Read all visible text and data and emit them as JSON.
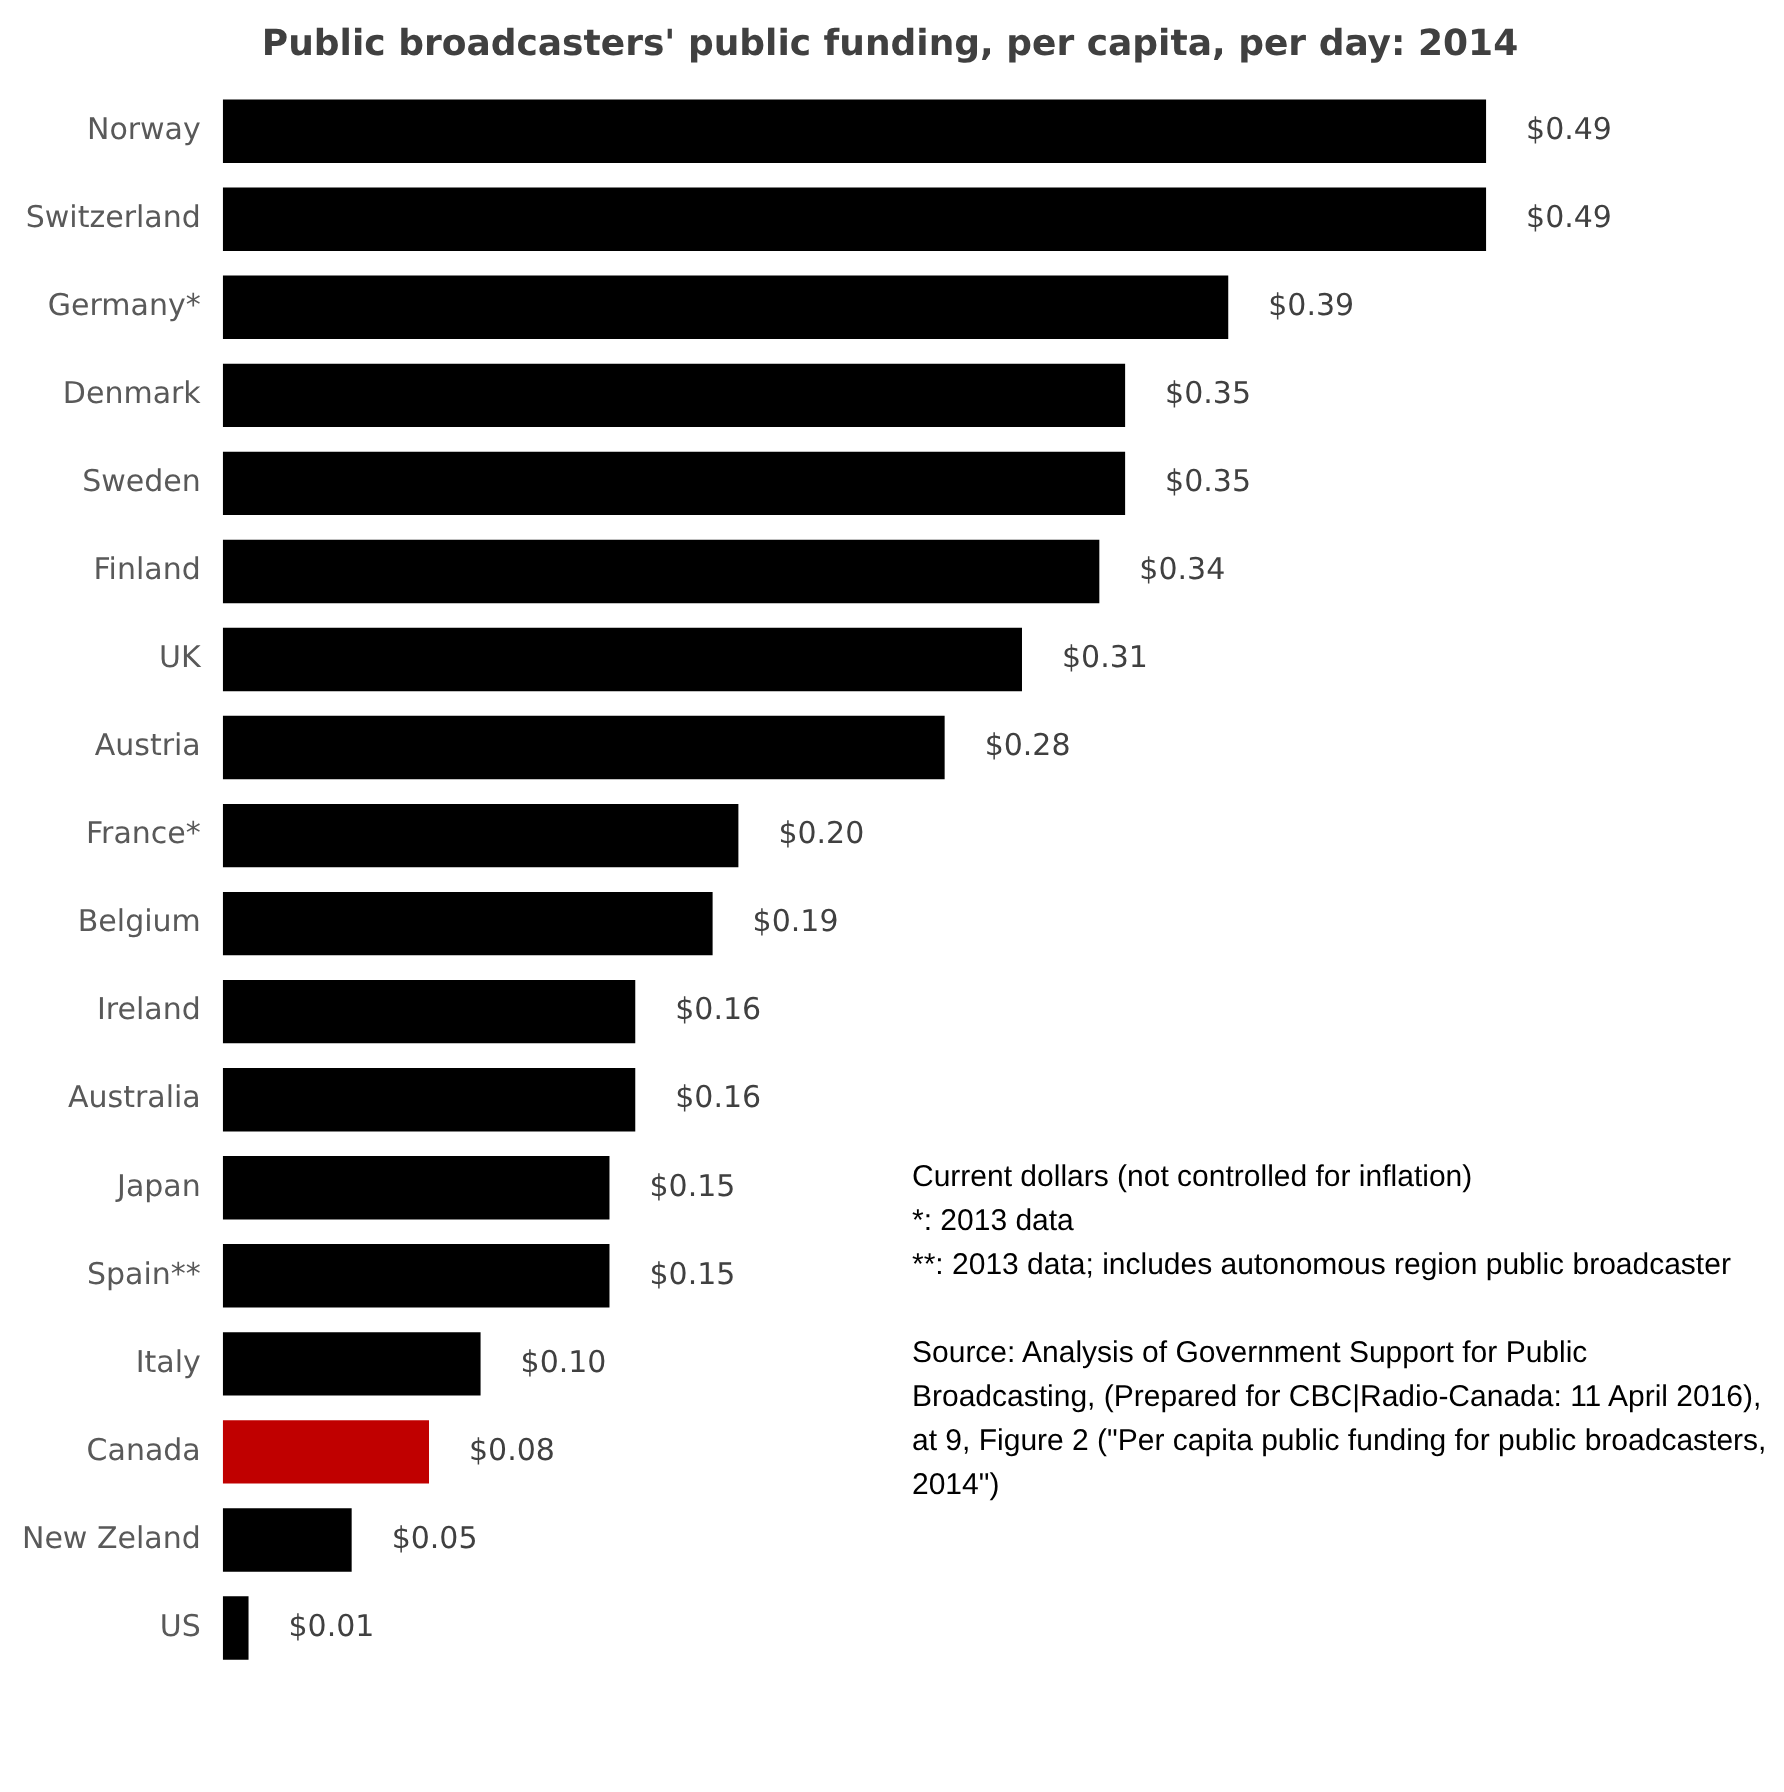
{
  "chart_data": {
    "type": "bar",
    "orientation": "horizontal",
    "title": "Public broadcasters' public funding, per capita, per day: 2014",
    "categories": [
      "Norway",
      "Switzerland",
      "Germany*",
      "Denmark",
      "Sweden",
      "Finland",
      "UK",
      "Austria",
      "France*",
      "Belgium",
      "Ireland",
      "Australia",
      "Japan",
      "Spain**",
      "Italy",
      "Canada",
      "New Zeland",
      "US"
    ],
    "values": [
      0.49,
      0.49,
      0.39,
      0.35,
      0.35,
      0.34,
      0.31,
      0.28,
      0.2,
      0.19,
      0.16,
      0.16,
      0.15,
      0.15,
      0.1,
      0.08,
      0.05,
      0.01
    ],
    "value_labels": [
      "$0.49",
      "$0.49",
      "$0.39",
      "$0.35",
      "$0.35",
      "$0.34",
      "$0.31",
      "$0.28",
      "$0.20",
      "$0.19",
      "$0.16",
      "$0.16",
      "$0.15",
      "$0.15",
      "$0.10",
      "$0.08",
      "$0.05",
      "$0.01"
    ],
    "colors": [
      "#000000",
      "#000000",
      "#000000",
      "#000000",
      "#000000",
      "#000000",
      "#000000",
      "#000000",
      "#000000",
      "#000000",
      "#000000",
      "#000000",
      "#000000",
      "#000000",
      "#000000",
      "#c00000",
      "#000000",
      "#000000"
    ],
    "legend": false,
    "tick_labels": "y",
    "annotations": [
      "Current dollars (not controlled for inflation)\n*: 2013  data\n**: 2013  data; includes autonomous region public broadcaster",
      "Source: Analysis of Government Support for Public Broadcasting, (Prepared for CBC|Radio-Canada: 11 April 2016), at 9, Figure 2 (\"Per capita public funding for public broadcasters, 2014\")"
    ]
  }
}
